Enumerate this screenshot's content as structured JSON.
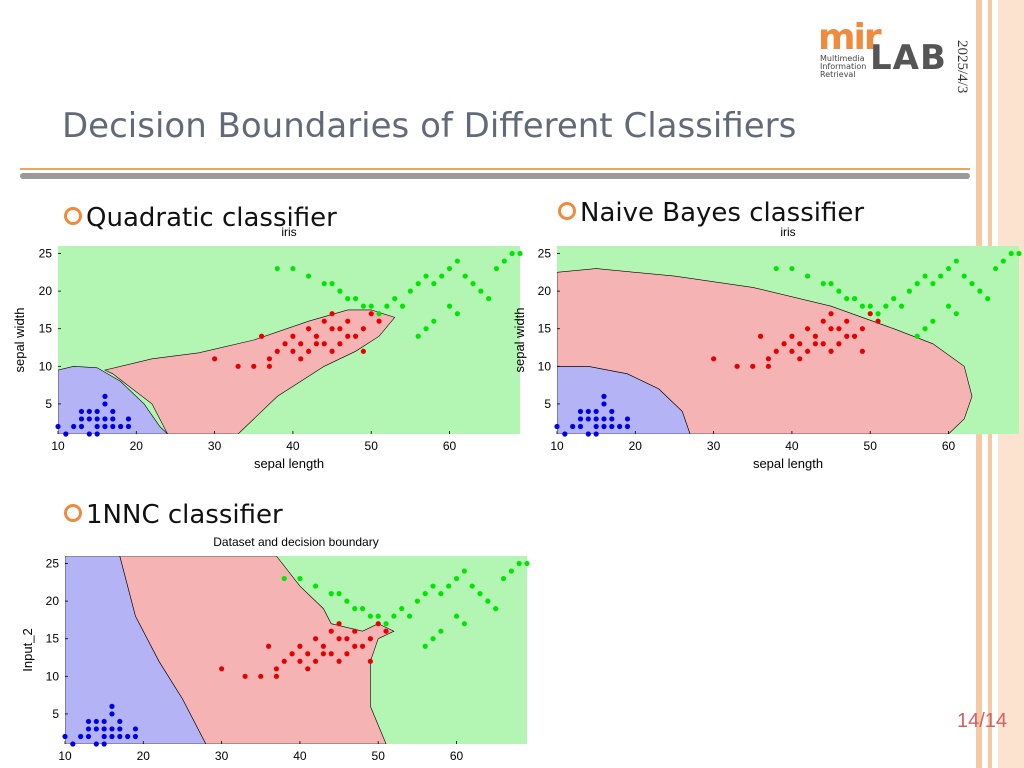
{
  "slide": {
    "title": "Decision Boundaries of Different Classifiers",
    "date": "2025/4/3",
    "page": "14/14",
    "logo": {
      "mark": "mir",
      "lab": "LAB",
      "lines": [
        "Multimedia",
        "Information",
        "Retrieval"
      ]
    },
    "accent_color": "#f08a3c"
  },
  "bullets": [
    "Quadratic classifier",
    "Naive Bayes classifier",
    "1NNC classifier"
  ],
  "chart_data": [
    {
      "type": "scatter",
      "title": "iris",
      "xlabel": "sepal length",
      "ylabel": "sepal width",
      "xlim": [
        10,
        69
      ],
      "ylim": [
        1,
        26
      ],
      "xticks": [
        10,
        20,
        30,
        40,
        50,
        60
      ],
      "yticks": [
        5,
        10,
        15,
        20,
        25
      ],
      "region_colors": {
        "blue": "#b3b3f5",
        "red": "#f6b3b3",
        "green": "#b3f5b3"
      },
      "regions": [
        {
          "class": "blue",
          "polygon": [
            [
              10,
              1
            ],
            [
              10,
              9.5
            ],
            [
              12,
              10
            ],
            [
              15,
              9.8
            ],
            [
              18,
              8
            ],
            [
              21,
              5
            ],
            [
              23,
              2
            ],
            [
              24,
              1
            ]
          ]
        },
        {
          "class": "red",
          "polygon": [
            [
              24,
              1
            ],
            [
              22,
              5
            ],
            [
              17,
              9
            ],
            [
              16,
              9.5
            ],
            [
              22,
              11
            ],
            [
              28,
              11.8
            ],
            [
              35,
              13.5
            ],
            [
              42,
              16
            ],
            [
              47,
              17.5
            ],
            [
              50,
              17.5
            ],
            [
              53,
              16.5
            ],
            [
              51,
              14
            ],
            [
              48,
              12
            ],
            [
              44,
              10
            ],
            [
              38,
              6
            ],
            [
              34,
              2
            ],
            [
              33,
              1
            ]
          ]
        }
      ],
      "series": [
        {
          "class": "blue",
          "color": "#0000e6",
          "x": [
            10,
            11,
            12,
            13,
            13,
            13,
            14,
            14,
            14,
            15,
            15,
            15,
            15,
            16,
            16,
            16,
            16,
            17,
            17,
            17,
            18,
            19,
            19
          ],
          "y": [
            2,
            1,
            2,
            2,
            3,
            4,
            1,
            3,
            4,
            2,
            3,
            4,
            1,
            2,
            3,
            5,
            6,
            3,
            4,
            2,
            2,
            3,
            2
          ]
        },
        {
          "class": "red",
          "color": "#e60000",
          "x": [
            30,
            33,
            35,
            37,
            38,
            39,
            40,
            40,
            41,
            41,
            42,
            42,
            43,
            43,
            44,
            44,
            45,
            45,
            46,
            46,
            47,
            47,
            48,
            49,
            50,
            51,
            49,
            45,
            36,
            37
          ],
          "y": [
            11,
            10,
            10,
            10,
            12,
            13,
            12,
            14,
            11,
            13,
            12,
            15,
            13,
            14,
            13,
            16,
            12,
            15,
            13,
            15,
            14,
            16,
            14,
            15,
            17,
            16,
            12,
            17,
            14,
            11
          ]
        },
        {
          "class": "green",
          "color": "#00e600",
          "x": [
            38,
            40,
            42,
            44,
            45,
            46,
            47,
            48,
            49,
            50,
            51,
            52,
            53,
            54,
            55,
            56,
            57,
            58,
            59,
            60,
            61,
            62,
            63,
            64,
            65,
            66,
            67,
            68,
            69,
            57,
            56,
            60,
            58,
            61
          ],
          "y": [
            23,
            23,
            22,
            21,
            21,
            20,
            19,
            19,
            18,
            18,
            17,
            18,
            19,
            18,
            20,
            21,
            22,
            21,
            22,
            23,
            24,
            22,
            21,
            20,
            19,
            23,
            24,
            25,
            25,
            15,
            14,
            18,
            16,
            17
          ]
        }
      ]
    },
    {
      "type": "scatter",
      "title": "iris",
      "xlabel": "sepal length",
      "ylabel": "sepal width",
      "xlim": [
        10,
        69
      ],
      "ylim": [
        1,
        26
      ],
      "xticks": [
        10,
        20,
        30,
        40,
        50,
        60
      ],
      "yticks": [
        5,
        10,
        15,
        20,
        25
      ],
      "region_colors": {
        "blue": "#b3b3f5",
        "red": "#f6b3b3",
        "green": "#b3f5b3"
      },
      "regions": [
        {
          "class": "blue",
          "polygon": [
            [
              10,
              1
            ],
            [
              10,
              10
            ],
            [
              14,
              10
            ],
            [
              19,
              9
            ],
            [
              23,
              7
            ],
            [
              26,
              4
            ],
            [
              27,
              1
            ]
          ]
        },
        {
          "class": "red",
          "polygon": [
            [
              10,
              10
            ],
            [
              10,
              22.5
            ],
            [
              15,
              23
            ],
            [
              25,
              22
            ],
            [
              35,
              20.5
            ],
            [
              45,
              18
            ],
            [
              53,
              15
            ],
            [
              58,
              13
            ],
            [
              62,
              10
            ],
            [
              63,
              6
            ],
            [
              62,
              3
            ],
            [
              60,
              1
            ],
            [
              27,
              1
            ],
            [
              26,
              4
            ],
            [
              23,
              7
            ],
            [
              19,
              9
            ],
            [
              14,
              10
            ]
          ]
        }
      ],
      "series": [
        {
          "class": "blue",
          "color": "#0000e6",
          "x": [
            10,
            11,
            12,
            13,
            13,
            13,
            14,
            14,
            14,
            15,
            15,
            15,
            15,
            16,
            16,
            16,
            16,
            17,
            17,
            17,
            18,
            19,
            19
          ],
          "y": [
            2,
            1,
            2,
            2,
            3,
            4,
            1,
            3,
            4,
            2,
            3,
            4,
            1,
            2,
            3,
            5,
            6,
            3,
            4,
            2,
            2,
            3,
            2
          ]
        },
        {
          "class": "red",
          "color": "#e60000",
          "x": [
            30,
            33,
            35,
            37,
            38,
            39,
            40,
            40,
            41,
            41,
            42,
            42,
            43,
            43,
            44,
            44,
            45,
            45,
            46,
            46,
            47,
            47,
            48,
            49,
            50,
            51,
            49,
            45,
            36,
            37
          ],
          "y": [
            11,
            10,
            10,
            10,
            12,
            13,
            12,
            14,
            11,
            13,
            12,
            15,
            13,
            14,
            13,
            16,
            12,
            15,
            13,
            15,
            14,
            16,
            14,
            15,
            17,
            16,
            12,
            17,
            14,
            11
          ]
        },
        {
          "class": "green",
          "color": "#00e600",
          "x": [
            38,
            40,
            42,
            44,
            45,
            46,
            47,
            48,
            49,
            50,
            51,
            52,
            53,
            54,
            55,
            56,
            57,
            58,
            59,
            60,
            61,
            62,
            63,
            64,
            65,
            66,
            67,
            68,
            69,
            57,
            56,
            60,
            58,
            61
          ],
          "y": [
            23,
            23,
            22,
            21,
            21,
            20,
            19,
            19,
            18,
            18,
            17,
            18,
            19,
            18,
            20,
            21,
            22,
            21,
            22,
            23,
            24,
            22,
            21,
            20,
            19,
            23,
            24,
            25,
            25,
            15,
            14,
            18,
            16,
            17
          ]
        }
      ]
    },
    {
      "type": "scatter",
      "title": "Dataset and decision boundary",
      "xlabel": "",
      "ylabel": "Input_2",
      "xlim": [
        10,
        69
      ],
      "ylim": [
        1,
        26
      ],
      "xticks": [
        10,
        20,
        30,
        40,
        50,
        60
      ],
      "yticks": [
        5,
        10,
        15,
        20,
        25
      ],
      "region_colors": {
        "blue": "#b3b3f5",
        "red": "#f6b3b3",
        "green": "#b3f5b3"
      },
      "regions": [
        {
          "class": "blue",
          "polygon": [
            [
              10,
              1
            ],
            [
              10,
              26
            ],
            [
              17,
              26
            ],
            [
              19,
              18
            ],
            [
              22,
              12
            ],
            [
              25,
              7
            ],
            [
              28,
              1
            ]
          ]
        },
        {
          "class": "red",
          "polygon": [
            [
              17,
              26
            ],
            [
              37,
              26
            ],
            [
              40,
              22
            ],
            [
              43,
              19
            ],
            [
              44,
              17
            ],
            [
              48,
              16
            ],
            [
              50,
              17
            ],
            [
              52,
              16
            ],
            [
              50,
              15
            ],
            [
              49,
              12
            ],
            [
              49,
              6
            ],
            [
              51,
              1
            ],
            [
              28,
              1
            ],
            [
              25,
              7
            ],
            [
              22,
              12
            ],
            [
              19,
              18
            ]
          ]
        }
      ],
      "series": [
        {
          "class": "blue",
          "color": "#0000e6",
          "x": [
            10,
            11,
            12,
            13,
            13,
            13,
            14,
            14,
            14,
            15,
            15,
            15,
            15,
            16,
            16,
            16,
            16,
            17,
            17,
            17,
            18,
            19,
            19
          ],
          "y": [
            2,
            1,
            2,
            2,
            3,
            4,
            1,
            3,
            4,
            2,
            3,
            4,
            1,
            2,
            3,
            5,
            6,
            3,
            4,
            2,
            2,
            3,
            2
          ]
        },
        {
          "class": "red",
          "color": "#e60000",
          "x": [
            30,
            33,
            35,
            37,
            38,
            39,
            40,
            40,
            41,
            41,
            42,
            42,
            43,
            43,
            44,
            44,
            45,
            45,
            46,
            46,
            47,
            47,
            48,
            49,
            50,
            51,
            49,
            45,
            36,
            37
          ],
          "y": [
            11,
            10,
            10,
            10,
            12,
            13,
            12,
            14,
            11,
            13,
            12,
            15,
            13,
            14,
            13,
            16,
            12,
            15,
            13,
            15,
            14,
            16,
            14,
            15,
            17,
            16,
            12,
            17,
            14,
            11
          ]
        },
        {
          "class": "green",
          "color": "#00e600",
          "x": [
            38,
            40,
            42,
            44,
            45,
            46,
            47,
            48,
            49,
            50,
            51,
            52,
            53,
            54,
            55,
            56,
            57,
            58,
            59,
            60,
            61,
            62,
            63,
            64,
            65,
            66,
            67,
            68,
            69,
            57,
            56,
            60,
            58,
            61
          ],
          "y": [
            23,
            23,
            22,
            21,
            21,
            20,
            19,
            19,
            18,
            18,
            17,
            18,
            19,
            18,
            20,
            21,
            22,
            21,
            22,
            23,
            24,
            22,
            21,
            20,
            19,
            23,
            24,
            25,
            25,
            15,
            14,
            18,
            16,
            17
          ]
        }
      ]
    }
  ]
}
